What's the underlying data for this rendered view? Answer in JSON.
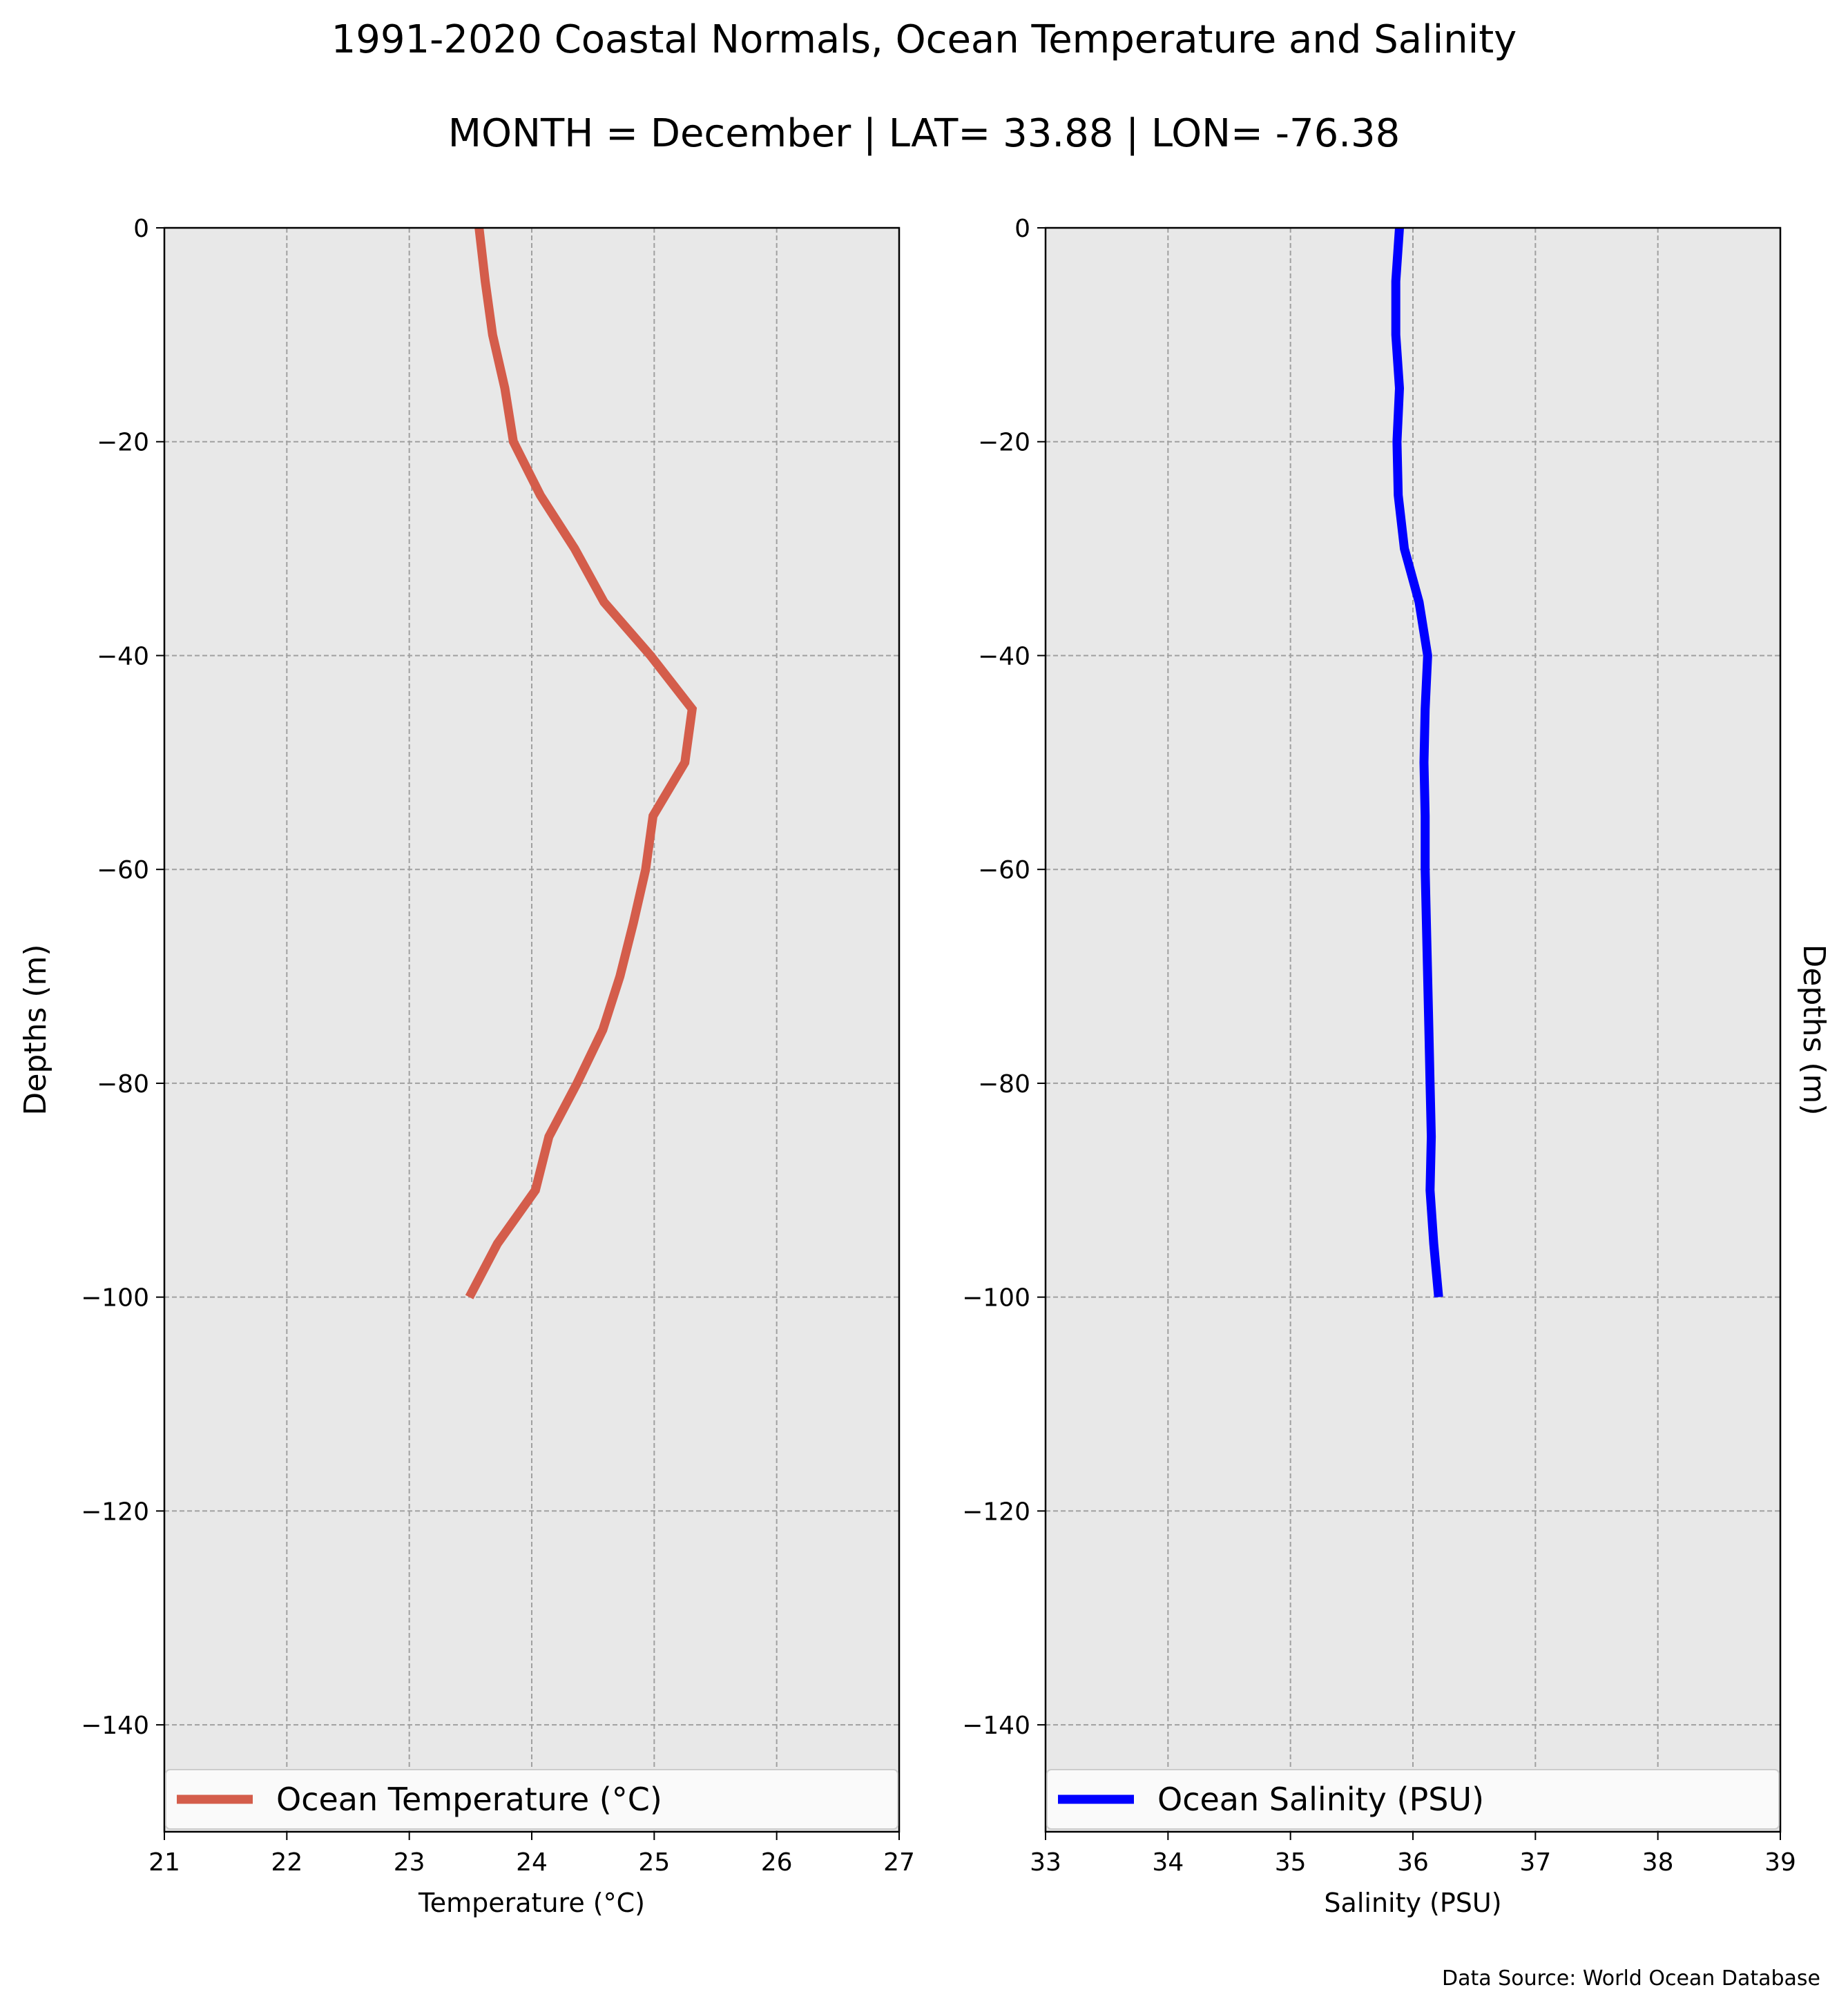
{
  "figure": {
    "title": "1991-2020 Coastal Normals, Ocean Temperature and Salinity",
    "subtitle": "MONTH = December | LAT= 33.88 | LON= -76.38",
    "source": "Data Source: World Ocean Database",
    "background_color": "#e8e8e8",
    "grid_color": "#a0a0a0"
  },
  "chart_data": [
    {
      "type": "line",
      "ylabel": "Depths (m)",
      "xlabel": "Temperature (°C)",
      "xlim": [
        21,
        27
      ],
      "ylim": [
        -150,
        0
      ],
      "x_ticks": [
        "21",
        "22",
        "23",
        "24",
        "25",
        "26",
        "27"
      ],
      "y_ticks": [
        "0",
        "−20",
        "−40",
        "−60",
        "−80",
        "−100",
        "−120",
        "−140"
      ],
      "grid": true,
      "legend_position": "lower center",
      "series": [
        {
          "name": "Ocean Temperature (°C)",
          "color": "#d45d4b",
          "x": [
            23.57,
            23.62,
            23.68,
            23.78,
            23.85,
            24.07,
            24.35,
            24.59,
            24.97,
            25.31,
            25.25,
            24.99,
            24.93,
            24.83,
            24.72,
            24.58,
            24.37,
            24.14,
            24.03,
            23.72,
            23.49
          ],
          "y": [
            0,
            -5,
            -10,
            -15,
            -20,
            -25,
            -30,
            -35,
            -40,
            -45,
            -50,
            -55,
            -60,
            -65,
            -70,
            -75,
            -80,
            -85,
            -90,
            -95,
            -100
          ]
        }
      ]
    },
    {
      "type": "line",
      "ylabel": "Depths (m)",
      "xlabel": "Salinity (PSU)",
      "xlim": [
        33,
        39
      ],
      "ylim": [
        -150,
        0
      ],
      "x_ticks": [
        "33",
        "34",
        "35",
        "36",
        "37",
        "38",
        "39"
      ],
      "y_ticks": [
        "0",
        "−20",
        "−40",
        "−60",
        "−80",
        "−100",
        "−120",
        "−140"
      ],
      "grid": true,
      "legend_position": "lower center",
      "series": [
        {
          "name": "Ocean Salinity (PSU)",
          "color": "#0000ff",
          "x": [
            35.89,
            35.86,
            35.86,
            35.89,
            35.87,
            35.88,
            35.93,
            36.05,
            36.12,
            36.1,
            36.09,
            36.1,
            36.1,
            36.11,
            36.12,
            36.13,
            36.14,
            36.15,
            36.14,
            36.17,
            36.21
          ],
          "y": [
            0,
            -5,
            -10,
            -15,
            -20,
            -25,
            -30,
            -35,
            -40,
            -45,
            -50,
            -55,
            -60,
            -65,
            -70,
            -75,
            -80,
            -85,
            -90,
            -95,
            -100
          ]
        }
      ]
    }
  ]
}
